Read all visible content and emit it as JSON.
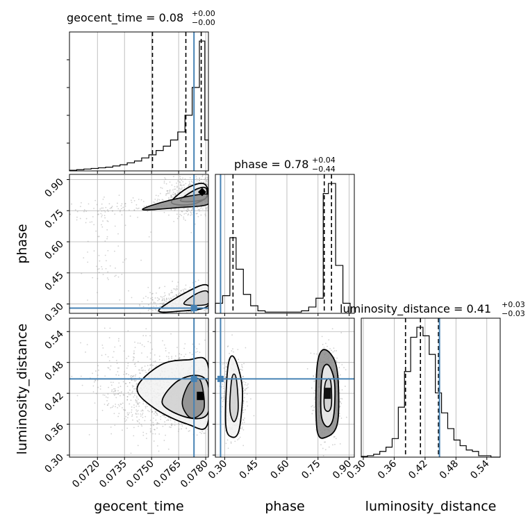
{
  "chart_data": {
    "type": "corner",
    "parameters": [
      "geocent_time",
      "phase",
      "luminosity_distance"
    ],
    "axis_labels": {
      "geocent_time": "geocent_time",
      "phase": "phase",
      "luminosity_distance": "luminosity_distance"
    },
    "titles": [
      {
        "param": "geocent_time",
        "name": "geocent_time",
        "median": "0.08",
        "plus": "+0.00",
        "minus": "−0.00"
      },
      {
        "param": "phase",
        "name": "phase",
        "median": "0.78",
        "plus": "+0.04",
        "minus": "−0.44"
      },
      {
        "param": "luminosity_distance",
        "name": "luminosity_distance",
        "median": "0.41",
        "plus": "+0.03",
        "minus": "−0.03"
      }
    ],
    "ranges": {
      "geocent_time": [
        0.07045,
        0.07815
      ],
      "phase": [
        0.255,
        0.925
      ],
      "luminosity_distance": [
        0.296,
        0.566
      ]
    },
    "ticks": {
      "geocent_time": [
        0.072,
        0.0735,
        0.075,
        0.0765,
        0.078
      ],
      "phase": [
        0.3,
        0.45,
        0.6,
        0.75,
        0.9
      ],
      "luminosity_distance": [
        0.3,
        0.36,
        0.42,
        0.48,
        0.54
      ]
    },
    "tick_labels": {
      "geocent_time": [
        "0.0720",
        "0.0735",
        "0.0750",
        "0.0765",
        "0.0780"
      ],
      "phase": [
        "0.30",
        "0.45",
        "0.60",
        "0.75",
        "0.90"
      ],
      "luminosity_distance": [
        "0.30",
        "0.36",
        "0.42",
        "0.48",
        "0.54"
      ]
    },
    "truths": {
      "geocent_time": 0.07735,
      "phase": 0.28,
      "luminosity_distance": 0.448
    },
    "quantiles": {
      "geocent_time": [
        0.07505,
        0.0769,
        0.07775
      ],
      "phase": [
        0.34,
        0.78,
        0.815
      ],
      "luminosity_distance": [
        0.382,
        0.411,
        0.446
      ]
    },
    "histograms": {
      "geocent_time": {
        "bin_edges": [
          0.07045,
          0.07085,
          0.07125,
          0.07165,
          0.07205,
          0.07245,
          0.07285,
          0.07325,
          0.07365,
          0.07405,
          0.07445,
          0.07485,
          0.07525,
          0.07565,
          0.07605,
          0.07645,
          0.07685,
          0.07725,
          0.07765,
          0.07795,
          0.07815
        ],
        "counts": [
          1,
          2,
          3,
          4,
          5,
          6,
          8,
          10,
          13,
          16,
          21,
          26,
          33,
          40,
          50,
          63,
          90,
          135,
          210,
          50
        ]
      },
      "phase": {
        "bin_edges": [
          0.255,
          0.29,
          0.325,
          0.355,
          0.39,
          0.425,
          0.46,
          0.495,
          0.53,
          0.565,
          0.6,
          0.635,
          0.67,
          0.705,
          0.74,
          0.775,
          0.8,
          0.835,
          0.87,
          0.905
        ],
        "counts": [
          8,
          14,
          60,
          35,
          15,
          6,
          2,
          1,
          1,
          1,
          1,
          1,
          2,
          5,
          12,
          95,
          103,
          38,
          8
        ]
      },
      "luminosity_distance": {
        "bin_edges": [
          0.296,
          0.308,
          0.32,
          0.332,
          0.344,
          0.356,
          0.368,
          0.38,
          0.392,
          0.404,
          0.416,
          0.428,
          0.44,
          0.452,
          0.464,
          0.476,
          0.488,
          0.5,
          0.512,
          0.524,
          0.536,
          0.548,
          0.566
        ],
        "counts": [
          0.5,
          1,
          2,
          4,
          7,
          13,
          35,
          60,
          84,
          91,
          85,
          72,
          45,
          31,
          20,
          12,
          8,
          5,
          4,
          1,
          1,
          0
        ]
      }
    },
    "scatter_seed": 7,
    "grid": true,
    "colors": {
      "truth": "#4682b4",
      "hist": "#000000",
      "grid": "#b0b0b0",
      "scatter": "#9a9a9a"
    }
  }
}
